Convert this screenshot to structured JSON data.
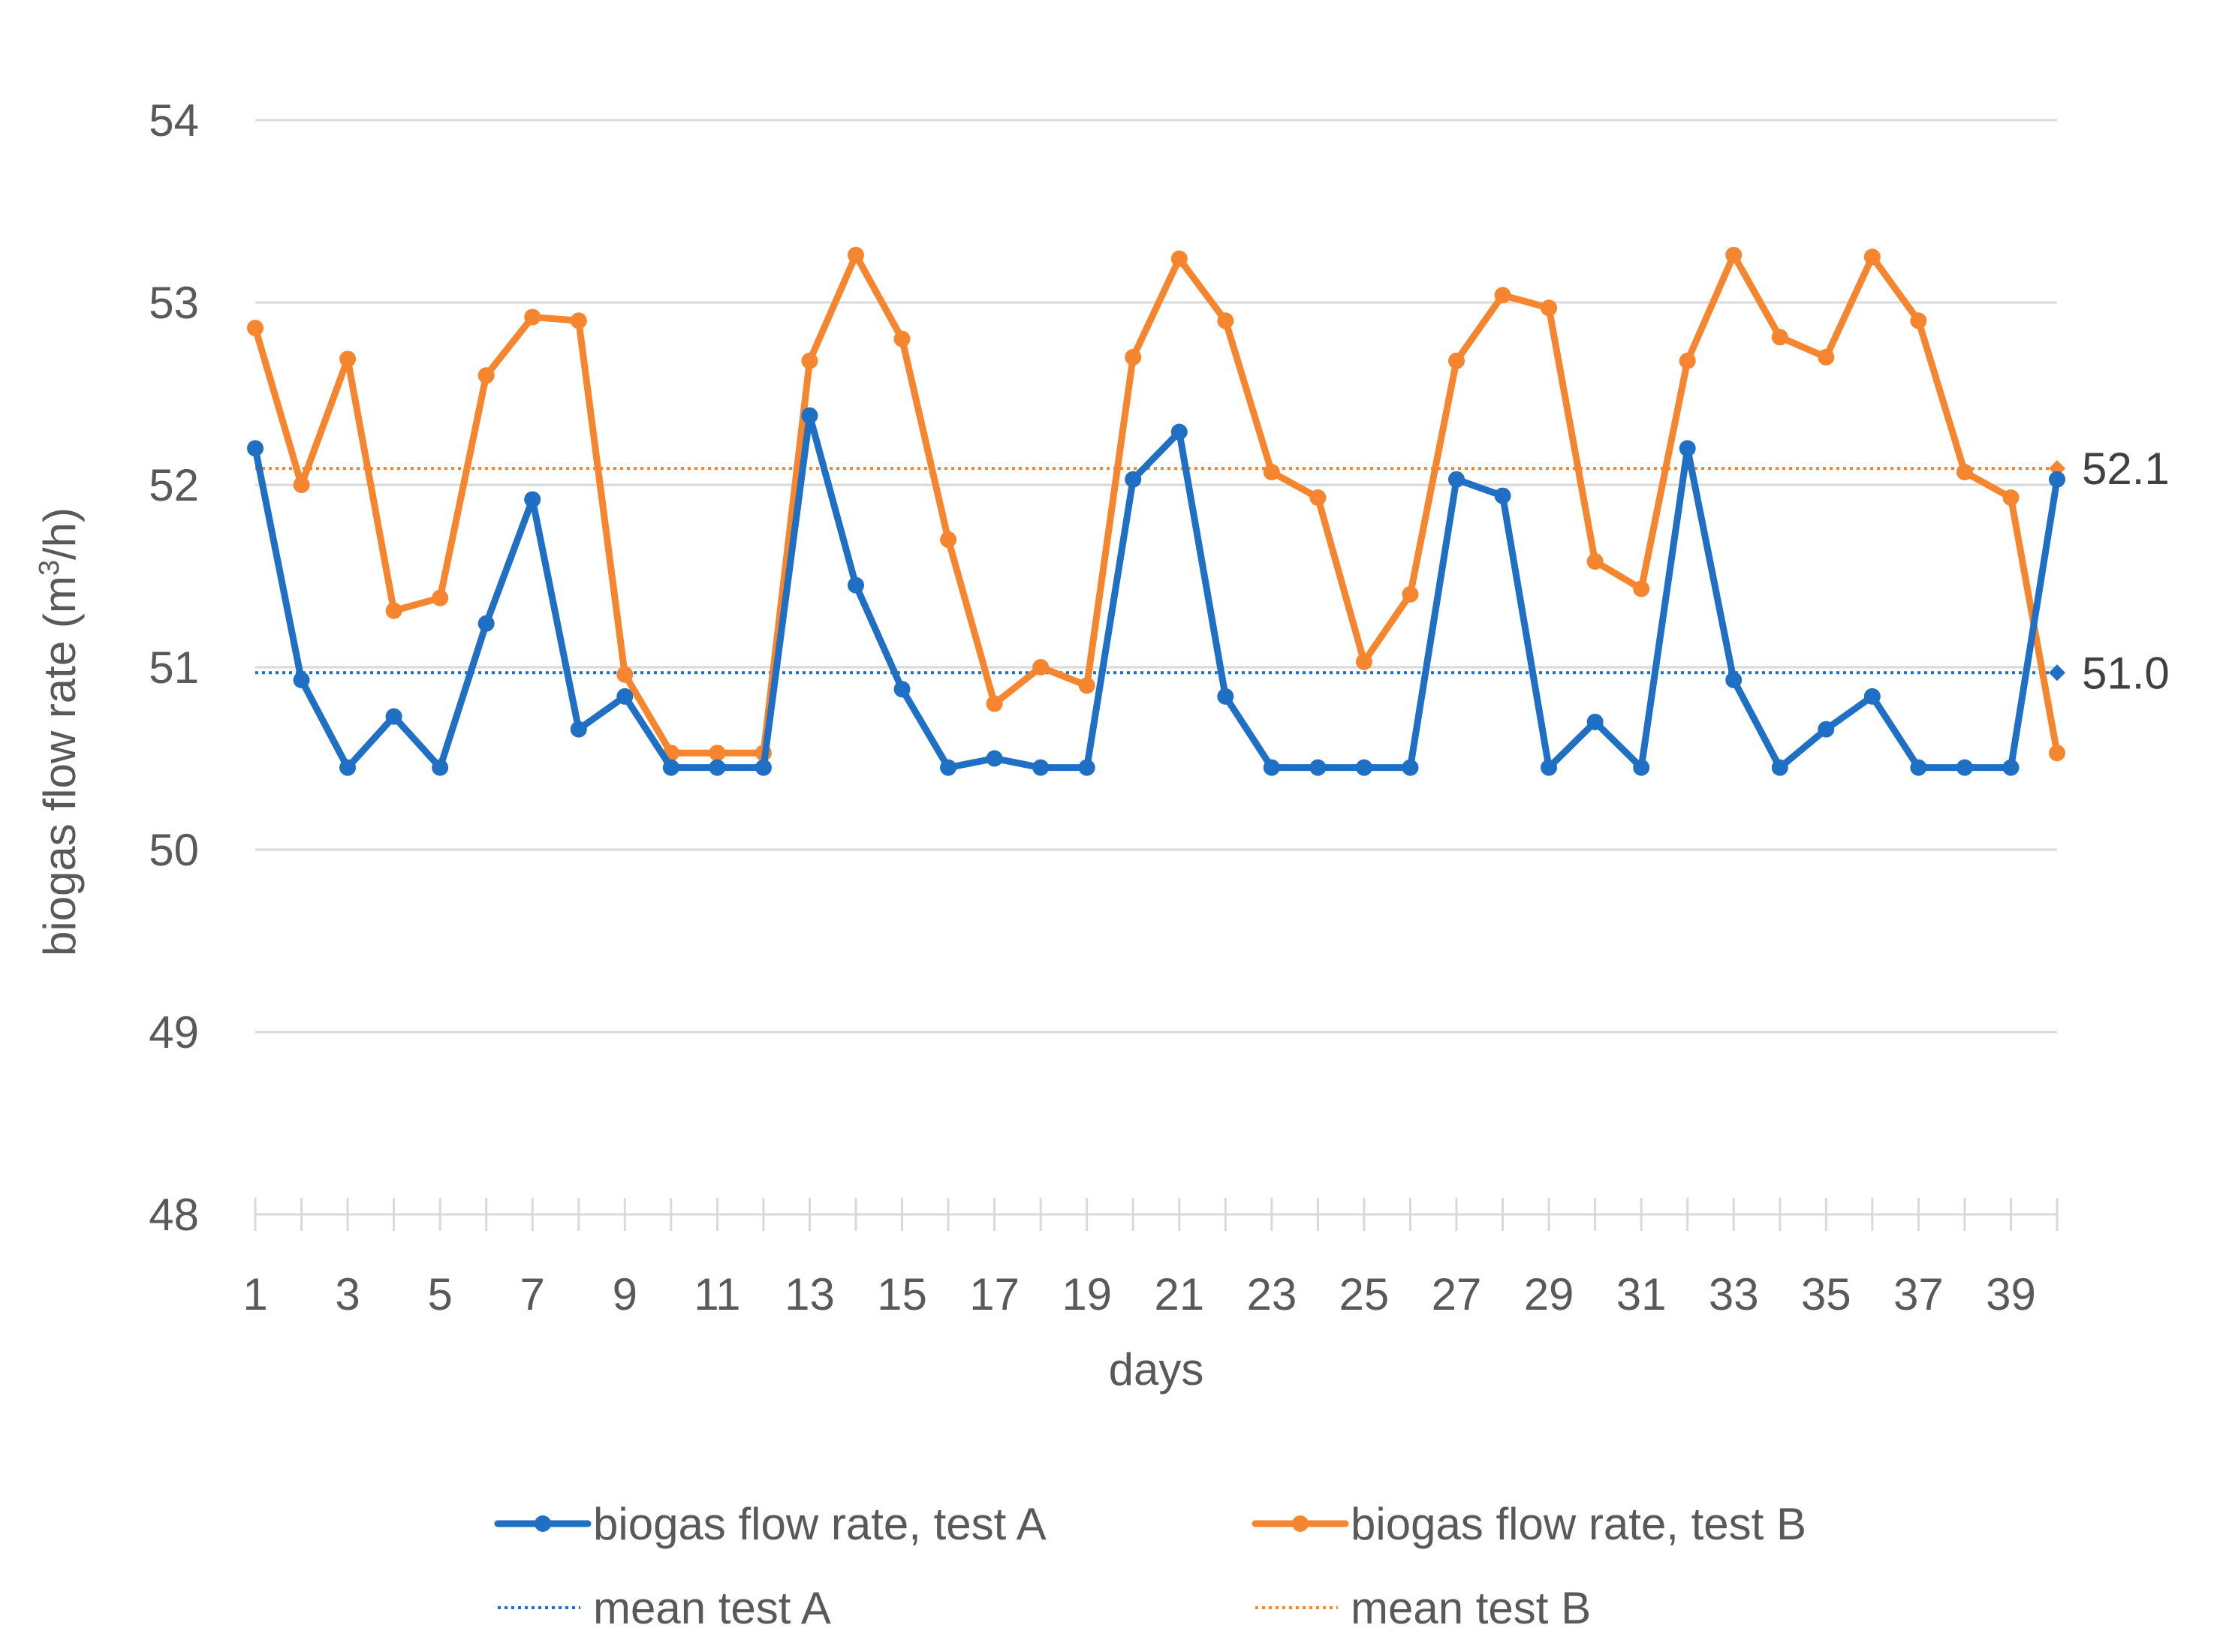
{
  "chart_data": {
    "type": "line",
    "xlabel": "days",
    "ylabel_prefix": "biogas flow rate (m",
    "ylabel_sup": "3",
    "ylabel_suffix": "/h)",
    "ylim": [
      48,
      54
    ],
    "yticks": [
      "48",
      "49",
      "50",
      "51",
      "52",
      "53",
      "54"
    ],
    "x": [
      1,
      2,
      3,
      4,
      5,
      6,
      7,
      8,
      9,
      10,
      11,
      12,
      13,
      14,
      15,
      16,
      17,
      18,
      19,
      20,
      21,
      22,
      23,
      24,
      25,
      26,
      27,
      28,
      29,
      30,
      31,
      32,
      33,
      34,
      35,
      36,
      37,
      38,
      39,
      40
    ],
    "xtick_labels": [
      "1",
      "3",
      "5",
      "7",
      "9",
      "11",
      "13",
      "15",
      "17",
      "19",
      "21",
      "23",
      "25",
      "27",
      "29",
      "31",
      "33",
      "35",
      "37",
      "39"
    ],
    "grid": true,
    "legend_position": "bottom",
    "series": [
      {
        "name": "biogas flow rate, test A",
        "style": "solid-markers",
        "color": "#1F6FC5",
        "values": [
          52.2,
          50.93,
          50.45,
          50.73,
          50.45,
          51.24,
          51.92,
          50.66,
          50.84,
          50.45,
          50.45,
          50.45,
          52.38,
          51.45,
          50.88,
          50.45,
          50.5,
          50.45,
          50.45,
          52.03,
          52.29,
          50.84,
          50.45,
          50.45,
          50.45,
          50.45,
          52.03,
          51.94,
          50.45,
          50.7,
          50.45,
          52.2,
          50.93,
          50.45,
          50.66,
          50.84,
          50.45,
          50.45,
          50.45,
          52.03
        ]
      },
      {
        "name": "biogas flow rate, test B",
        "style": "solid-markers",
        "color": "#F5862F",
        "values": [
          52.86,
          52.0,
          52.69,
          51.31,
          51.38,
          52.6,
          52.92,
          52.9,
          50.96,
          50.53,
          50.53,
          50.53,
          52.68,
          53.26,
          52.8,
          51.7,
          50.8,
          51.0,
          50.9,
          52.7,
          53.24,
          52.9,
          52.07,
          51.93,
          51.03,
          51.4,
          52.68,
          53.04,
          52.97,
          51.58,
          51.43,
          52.68,
          53.26,
          52.81,
          52.7,
          53.25,
          52.9,
          52.07,
          51.93,
          50.53
        ]
      },
      {
        "name": "mean test A",
        "style": "dotted",
        "color": "#1F6FC5",
        "value": 50.97,
        "label": "51.0"
      },
      {
        "name": "mean test B",
        "style": "dotted",
        "color": "#F5862F",
        "value": 52.09,
        "label": "52.1"
      }
    ]
  }
}
